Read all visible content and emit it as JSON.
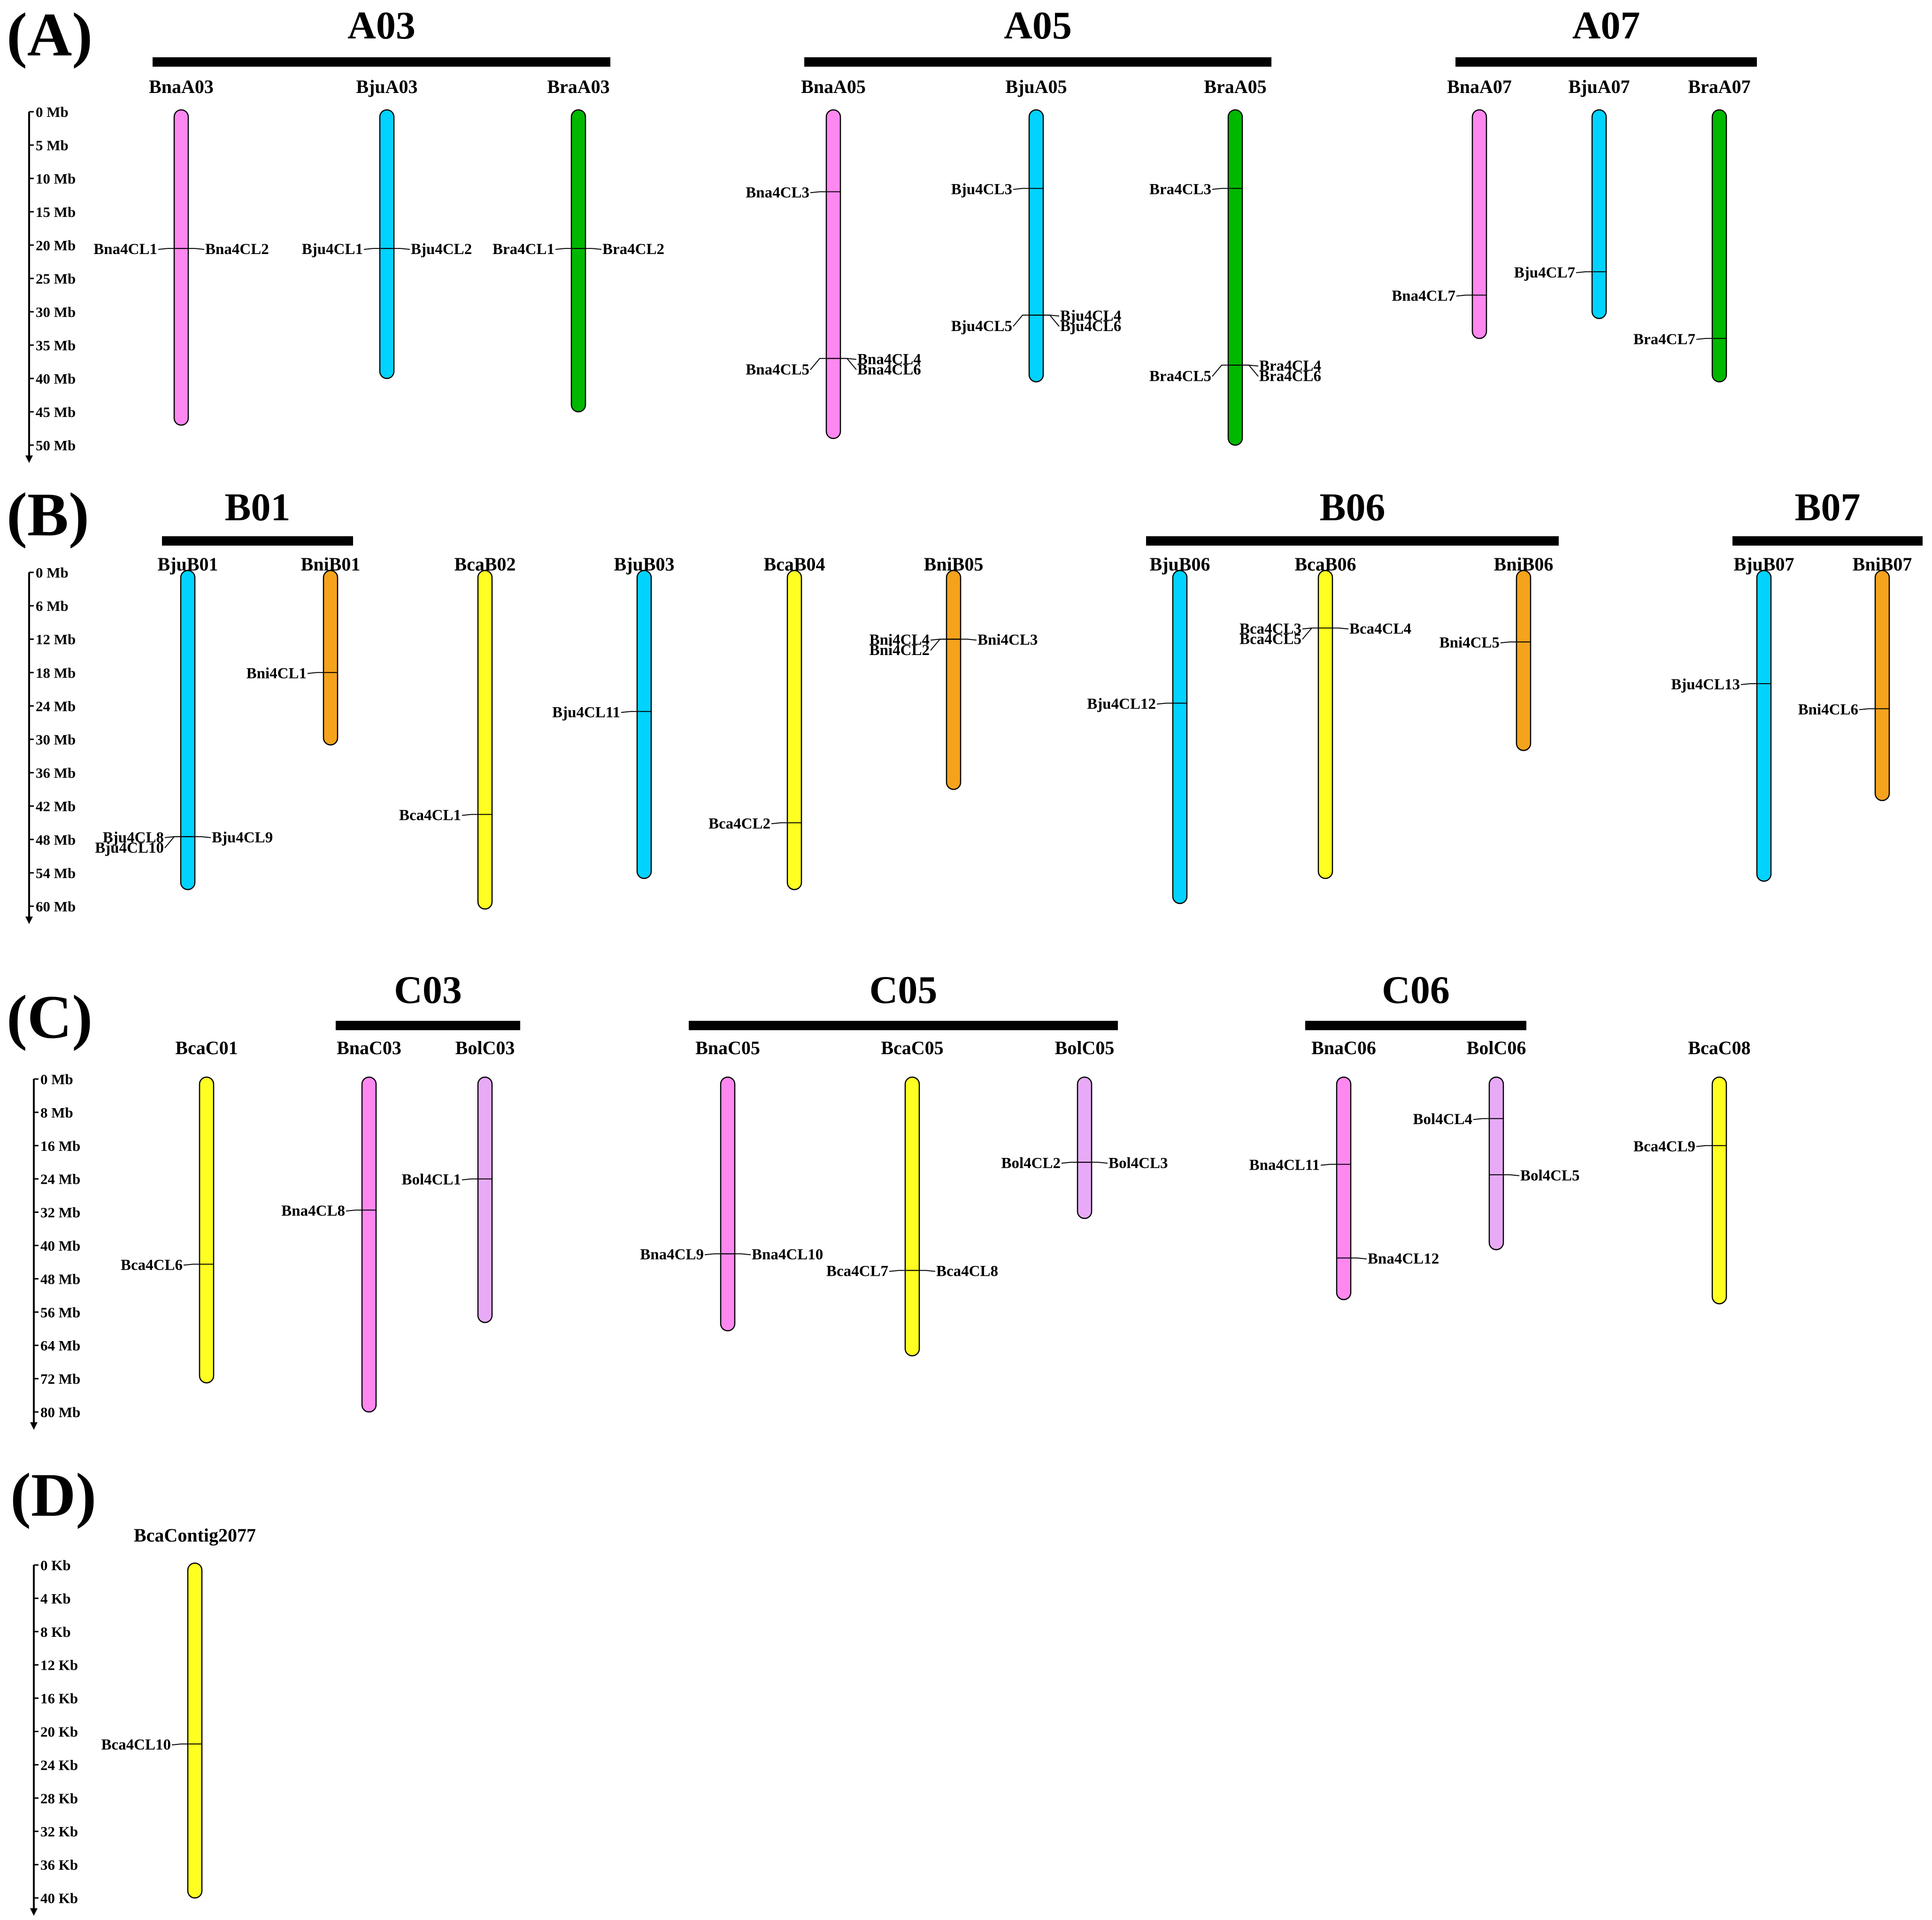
{
  "colors": {
    "Bna": "#ff88f0",
    "Bju": "#00d3ff",
    "Bra": "#00b800",
    "Bni": "#f5a31c",
    "Bca": "#ffff22",
    "Bol": "#e8aaf6",
    "ink": "#000000"
  },
  "panels": [
    {
      "label": "(A)",
      "unit": "Mb",
      "scale": [
        "0 Mb",
        "5 Mb",
        "10 Mb",
        "15 Mb",
        "20 Mb",
        "25 Mb",
        "30 Mb",
        "35 Mb",
        "40 Mb",
        "45 Mb",
        "50 Mb"
      ],
      "scale_max": 50,
      "groups": [
        {
          "name": "A03",
          "members": [
            "BnaA03",
            "BjuA03",
            "BraA03"
          ]
        },
        {
          "name": "A05",
          "members": [
            "BnaA05",
            "BjuA05",
            "BraA05"
          ]
        },
        {
          "name": "A07",
          "members": [
            "BnaA07",
            "BjuA07",
            "BraA07"
          ]
        }
      ],
      "chromosomes": [
        {
          "name": "BnaA03",
          "species": "Bna",
          "length": 47,
          "genes": [
            {
              "name": "Bna4CL1",
              "pos": 20.5,
              "side": "left"
            },
            {
              "name": "Bna4CL2",
              "pos": 20.5,
              "side": "right"
            }
          ]
        },
        {
          "name": "BjuA03",
          "species": "Bju",
          "length": 40,
          "genes": [
            {
              "name": "Bju4CL1",
              "pos": 20.5,
              "side": "left"
            },
            {
              "name": "Bju4CL2",
              "pos": 20.5,
              "side": "right"
            }
          ]
        },
        {
          "name": "BraA03",
          "species": "Bra",
          "length": 45,
          "genes": [
            {
              "name": "Bra4CL1",
              "pos": 20.5,
              "side": "left"
            },
            {
              "name": "Bra4CL2",
              "pos": 20.5,
              "side": "right"
            }
          ]
        },
        {
          "name": "BnaA05",
          "species": "Bna",
          "length": 49,
          "genes": [
            {
              "name": "Bna4CL3",
              "pos": 12,
              "side": "left"
            },
            {
              "name": "Bna4CL5",
              "pos": 37,
              "side": "left"
            },
            {
              "name": "Bna4CL4",
              "pos": 37,
              "side": "right"
            },
            {
              "name": "Bna4CL6",
              "pos": 37,
              "side": "right"
            }
          ]
        },
        {
          "name": "BjuA05",
          "species": "Bju",
          "length": 40.5,
          "genes": [
            {
              "name": "Bju4CL3",
              "pos": 11.5,
              "side": "left"
            },
            {
              "name": "Bju4CL5",
              "pos": 30.5,
              "side": "left"
            },
            {
              "name": "Bju4CL4",
              "pos": 30.5,
              "side": "right"
            },
            {
              "name": "Bju4CL6",
              "pos": 30.5,
              "side": "right"
            }
          ]
        },
        {
          "name": "BraA05",
          "species": "Bra",
          "length": 50,
          "genes": [
            {
              "name": "Bra4CL3",
              "pos": 11.5,
              "side": "left"
            },
            {
              "name": "Bra4CL5",
              "pos": 38,
              "side": "left"
            },
            {
              "name": "Bra4CL4",
              "pos": 38,
              "side": "right"
            },
            {
              "name": "Bra4CL6",
              "pos": 38,
              "side": "right"
            }
          ]
        },
        {
          "name": "BnaA07",
          "species": "Bna",
          "length": 34,
          "genes": [
            {
              "name": "Bna4CL7",
              "pos": 27.5,
              "side": "left"
            }
          ]
        },
        {
          "name": "BjuA07",
          "species": "Bju",
          "length": 31,
          "genes": [
            {
              "name": "Bju4CL7",
              "pos": 24,
              "side": "left"
            }
          ]
        },
        {
          "name": "BraA07",
          "species": "Bra",
          "length": 40.5,
          "genes": [
            {
              "name": "Bra4CL7",
              "pos": 34,
              "side": "left"
            }
          ]
        }
      ]
    },
    {
      "label": "(B)",
      "unit": "Mb",
      "scale": [
        "0 Mb",
        "6 Mb",
        "12 Mb",
        "18 Mb",
        "24 Mb",
        "30 Mb",
        "36 Mb",
        "42 Mb",
        "48 Mb",
        "54 Mb",
        "60 Mb"
      ],
      "scale_max": 60,
      "groups": [
        {
          "name": "B01",
          "members": [
            "BjuB01",
            "BniB01"
          ]
        },
        {
          "name": "B06",
          "members": [
            "BjuB06",
            "BcaB06",
            "BniB06"
          ]
        },
        {
          "name": "B07",
          "members": [
            "BjuB07",
            "BniB07"
          ]
        }
      ],
      "chromosomes": [
        {
          "name": "BjuB01",
          "species": "Bju",
          "length": 57,
          "genes": [
            {
              "name": "Bju4CL8",
              "pos": 47.5,
              "side": "left"
            },
            {
              "name": "Bju4CL10",
              "pos": 47.5,
              "side": "left"
            },
            {
              "name": "Bju4CL9",
              "pos": 47.5,
              "side": "right"
            }
          ]
        },
        {
          "name": "BniB01",
          "species": "Bni",
          "length": 31,
          "genes": [
            {
              "name": "Bni4CL1",
              "pos": 18,
              "side": "left"
            }
          ]
        },
        {
          "name": "BcaB02",
          "species": "Bca",
          "length": 60.5,
          "genes": [
            {
              "name": "Bca4CL1",
              "pos": 43.5,
              "side": "left"
            }
          ]
        },
        {
          "name": "BjuB03",
          "species": "Bju",
          "length": 55,
          "genes": [
            {
              "name": "Bju4CL11",
              "pos": 25,
              "side": "left"
            }
          ]
        },
        {
          "name": "BcaB04",
          "species": "Bca",
          "length": 57,
          "genes": [
            {
              "name": "Bca4CL2",
              "pos": 45,
              "side": "left"
            }
          ]
        },
        {
          "name": "BniB05",
          "species": "Bni",
          "length": 39,
          "genes": [
            {
              "name": "Bni4CL4",
              "pos": 12,
              "side": "left"
            },
            {
              "name": "Bni4CL2",
              "pos": 12,
              "side": "left"
            },
            {
              "name": "Bni4CL3",
              "pos": 12,
              "side": "right"
            }
          ]
        },
        {
          "name": "BjuB06",
          "species": "Bju",
          "length": 59.5,
          "genes": [
            {
              "name": "Bju4CL12",
              "pos": 23.5,
              "side": "left"
            }
          ]
        },
        {
          "name": "BcaB06",
          "species": "Bca",
          "length": 55,
          "genes": [
            {
              "name": "Bca4CL3",
              "pos": 10,
              "side": "left"
            },
            {
              "name": "Bca4CL5",
              "pos": 10,
              "side": "left"
            },
            {
              "name": "Bca4CL4",
              "pos": 10,
              "side": "right"
            }
          ]
        },
        {
          "name": "BniB06",
          "species": "Bni",
          "length": 32,
          "genes": [
            {
              "name": "Bni4CL5",
              "pos": 12.5,
              "side": "left"
            }
          ]
        },
        {
          "name": "BjuB07",
          "species": "Bju",
          "length": 55.5,
          "genes": [
            {
              "name": "Bju4CL13",
              "pos": 20,
              "side": "left"
            }
          ]
        },
        {
          "name": "BniB07",
          "species": "Bni",
          "length": 41,
          "genes": [
            {
              "name": "Bni4CL6",
              "pos": 24.5,
              "side": "left"
            }
          ]
        }
      ]
    },
    {
      "label": "(C)",
      "unit": "Mb",
      "scale": [
        "0 Mb",
        "8 Mb",
        "16 Mb",
        "24 Mb",
        "32 Mb",
        "40 Mb",
        "48 Mb",
        "56 Mb",
        "64 Mb",
        "72 Mb",
        "80 Mb"
      ],
      "scale_max": 80,
      "groups": [
        {
          "name": "C03",
          "members": [
            "BnaC03",
            "BolC03"
          ]
        },
        {
          "name": "C05",
          "members": [
            "BnaC05",
            "BcaC05",
            "BolC05"
          ]
        },
        {
          "name": "C06",
          "members": [
            "BnaC06",
            "BolC06"
          ]
        }
      ],
      "chromosomes": [
        {
          "name": "BcaC01",
          "species": "Bca",
          "length": 73,
          "genes": [
            {
              "name": "Bca4CL6",
              "pos": 44.5,
              "side": "left"
            }
          ]
        },
        {
          "name": "BnaC03",
          "species": "Bna",
          "length": 80,
          "genes": [
            {
              "name": "Bna4CL8",
              "pos": 31.5,
              "side": "left"
            }
          ]
        },
        {
          "name": "BolC03",
          "species": "Bol",
          "length": 58.5,
          "genes": [
            {
              "name": "Bol4CL1",
              "pos": 24,
              "side": "left"
            }
          ]
        },
        {
          "name": "BnaC05",
          "species": "Bna",
          "length": 60.5,
          "genes": [
            {
              "name": "Bna4CL9",
              "pos": 42,
              "side": "left"
            },
            {
              "name": "Bna4CL10",
              "pos": 42,
              "side": "right"
            }
          ]
        },
        {
          "name": "BcaC05",
          "species": "Bca",
          "length": 66.5,
          "genes": [
            {
              "name": "Bca4CL7",
              "pos": 46,
              "side": "left"
            },
            {
              "name": "Bca4CL8",
              "pos": 46,
              "side": "right"
            }
          ]
        },
        {
          "name": "BolC05",
          "species": "Bol",
          "length": 33.5,
          "genes": [
            {
              "name": "Bol4CL2",
              "pos": 20,
              "side": "left"
            },
            {
              "name": "Bol4CL3",
              "pos": 20,
              "side": "right"
            }
          ]
        },
        {
          "name": "BnaC06",
          "species": "Bna",
          "length": 53,
          "genes": [
            {
              "name": "Bna4CL11",
              "pos": 20.5,
              "side": "left"
            },
            {
              "name": "Bna4CL12",
              "pos": 43,
              "side": "right"
            }
          ]
        },
        {
          "name": "BolC06",
          "species": "Bol",
          "length": 41,
          "genes": [
            {
              "name": "Bol4CL4",
              "pos": 9.5,
              "side": "left"
            },
            {
              "name": "Bol4CL5",
              "pos": 23,
              "side": "right"
            }
          ]
        },
        {
          "name": "BcaC08",
          "species": "Bca",
          "length": 54,
          "genes": [
            {
              "name": "Bca4CL9",
              "pos": 16,
              "side": "left"
            }
          ]
        }
      ]
    },
    {
      "label": "(D)",
      "unit": "Kb",
      "scale": [
        "0 Kb",
        "4 Kb",
        "8 Kb",
        "12 Kb",
        "16 Kb",
        "20 Kb",
        "24 Kb",
        "28 Kb",
        "32 Kb",
        "36 Kb",
        "40 Kb"
      ],
      "scale_max": 40,
      "groups": [],
      "chromosomes": [
        {
          "name": "BcaContig2077",
          "species": "Bca",
          "length": 40,
          "genes": [
            {
              "name": "Bca4CL10",
              "pos": 21.5,
              "side": "left"
            }
          ]
        }
      ]
    }
  ]
}
